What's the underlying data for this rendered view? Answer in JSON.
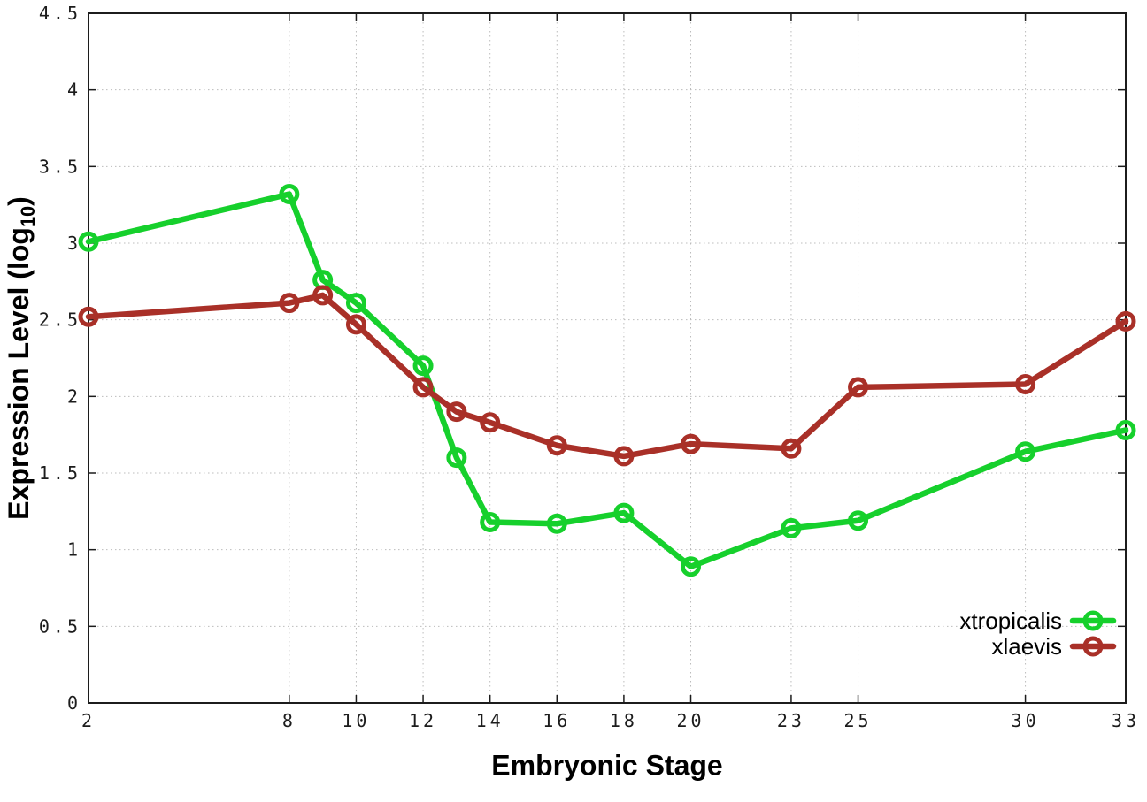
{
  "figure": {
    "background": "#ffffff"
  },
  "chart_data": {
    "type": "line",
    "title": "",
    "xlabel": "Embryonic Stage",
    "ylabel": "Expression Level (log10)",
    "ylabel_parts": {
      "main": "Expression Level (log",
      "sub": "10",
      "end": ")"
    },
    "x": [
      2,
      8,
      9,
      10,
      12,
      13,
      14,
      16,
      18,
      20,
      23,
      25,
      30,
      33
    ],
    "series": [
      {
        "name": "xtropicalis",
        "color": "#16d02c",
        "values": [
          3.01,
          3.32,
          2.76,
          2.61,
          2.2,
          1.6,
          1.18,
          1.17,
          1.24,
          0.89,
          1.14,
          1.19,
          1.64,
          1.78
        ]
      },
      {
        "name": "xlaevis",
        "color": "#a93028",
        "values": [
          2.52,
          2.61,
          2.66,
          2.47,
          2.06,
          1.9,
          1.83,
          1.68,
          1.61,
          1.69,
          1.66,
          2.06,
          2.08,
          2.49
        ]
      }
    ],
    "x_ticks": [
      2,
      8,
      10,
      12,
      14,
      16,
      18,
      20,
      23,
      25,
      30,
      33
    ],
    "y_ticks": [
      0,
      0.5,
      1,
      1.5,
      2,
      2.5,
      3,
      3.5,
      4,
      4.5
    ],
    "xlim": [
      2,
      33
    ],
    "ylim": [
      0,
      4.5
    ],
    "grid": true,
    "grid_color": "#bcbcbc",
    "axis_color": "#1c1c1c",
    "legend_position": "bottom-right",
    "legend_entries": [
      "xtropicalis",
      "xlaevis"
    ]
  }
}
